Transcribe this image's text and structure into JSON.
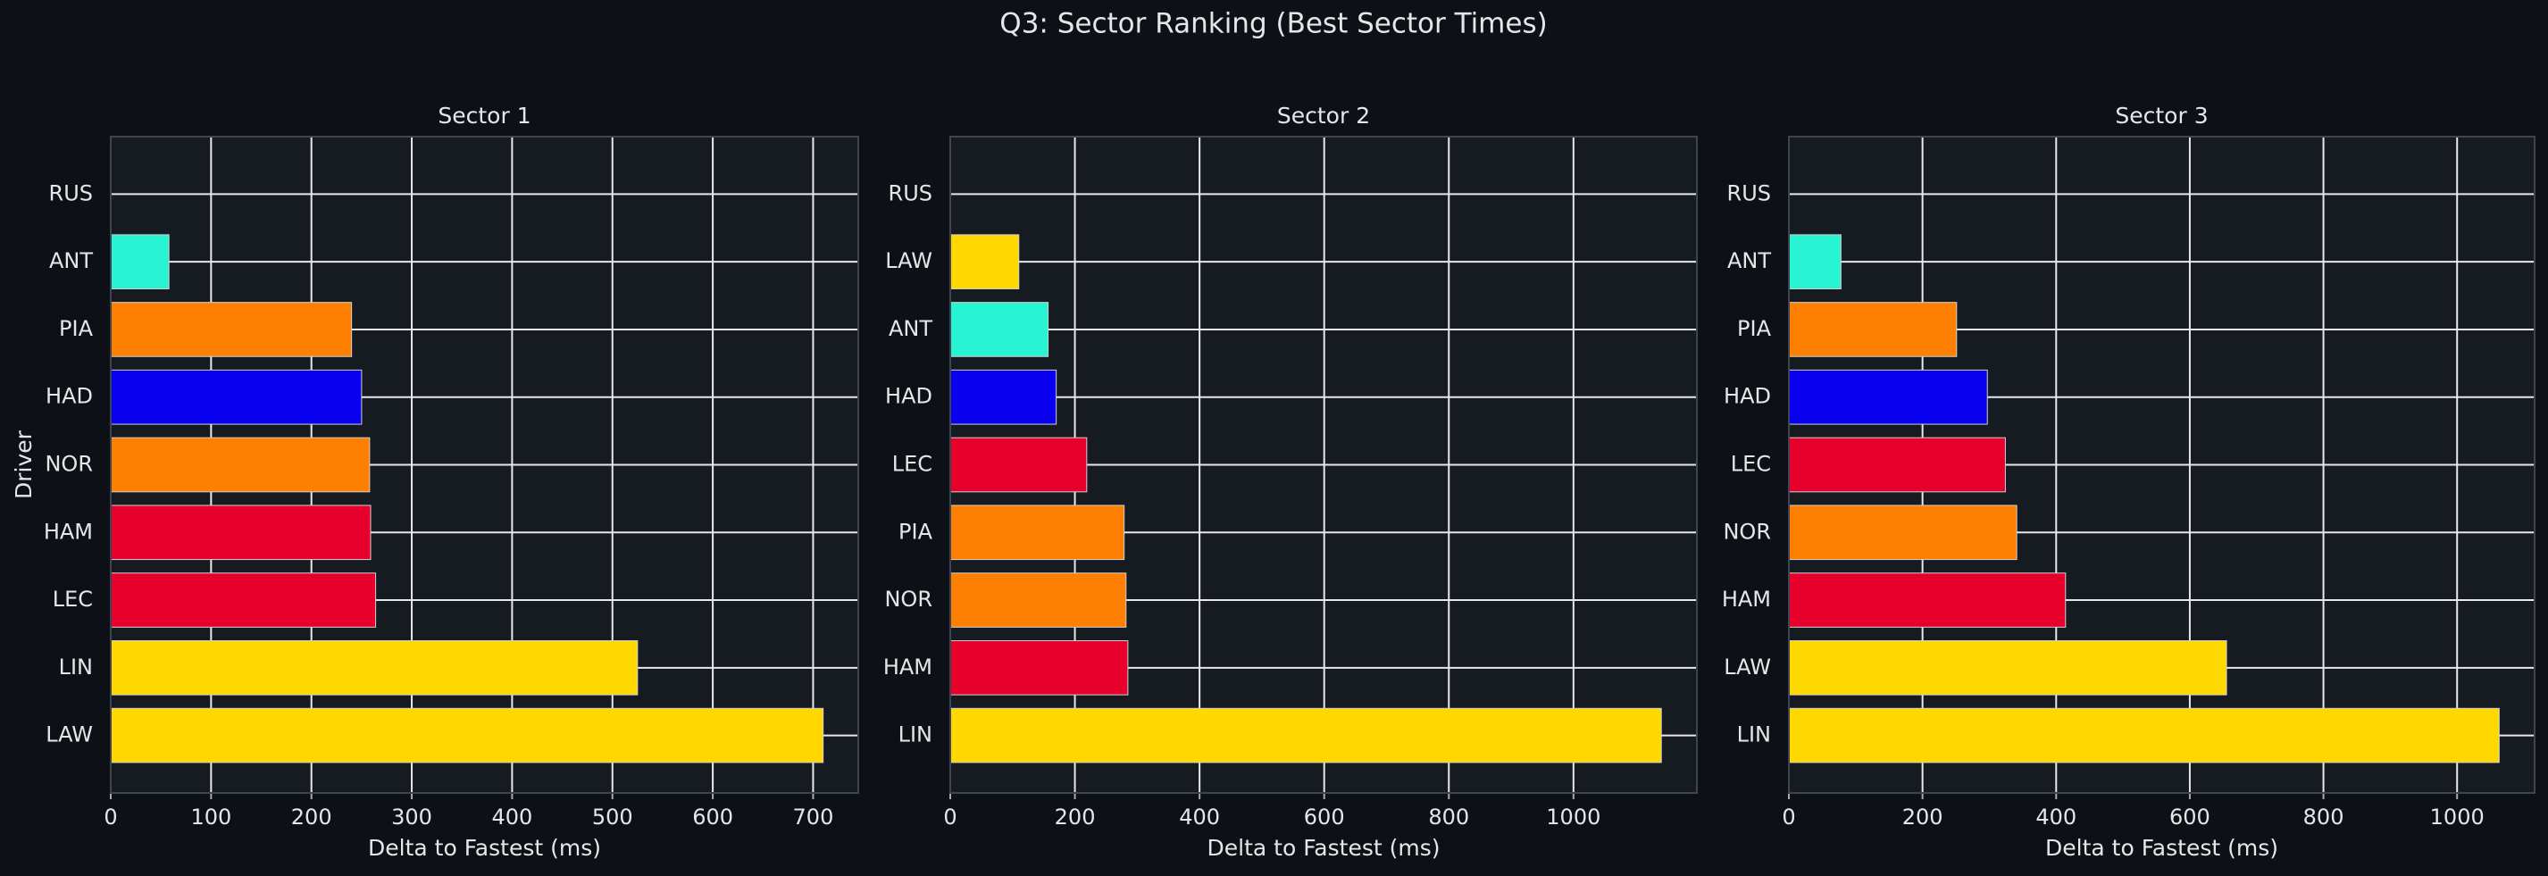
{
  "title": "Q3: Sector Ranking (Best Sector Times)",
  "chart_data": [
    {
      "type": "bar",
      "orientation": "horizontal",
      "title": "Sector 1",
      "xlabel": "Delta to Fastest (ms)",
      "ylabel": "Driver",
      "categories": [
        "RUS",
        "ANT",
        "PIA",
        "HAD",
        "NOR",
        "HAM",
        "LEC",
        "LIN",
        "LAW"
      ],
      "values": [
        0,
        58,
        240,
        250,
        258,
        259,
        264,
        525,
        710
      ],
      "colors": [
        "#27f4d2",
        "#27f4d2",
        "#ff8000",
        "#0a00f0",
        "#ff8000",
        "#e8002d",
        "#e8002d",
        "#ffd800",
        "#ffd800"
      ],
      "xlim": [
        0,
        745
      ],
      "xticks": [
        0,
        100,
        200,
        300,
        400,
        500,
        600,
        700
      ],
      "grid": true
    },
    {
      "type": "bar",
      "orientation": "horizontal",
      "title": "Sector 2",
      "xlabel": "Delta to Fastest (ms)",
      "categories": [
        "RUS",
        "LAW",
        "ANT",
        "HAD",
        "LEC",
        "PIA",
        "NOR",
        "HAM",
        "LIN"
      ],
      "values": [
        0,
        110,
        157,
        170,
        219,
        279,
        282,
        285,
        1141
      ],
      "colors": [
        "#27f4d2",
        "#ffd800",
        "#27f4d2",
        "#0a00f0",
        "#e8002d",
        "#ff8000",
        "#ff8000",
        "#e8002d",
        "#ffd800"
      ],
      "xlim": [
        0,
        1198
      ],
      "xticks": [
        0,
        200,
        400,
        600,
        800,
        1000
      ],
      "grid": true
    },
    {
      "type": "bar",
      "orientation": "horizontal",
      "title": "Sector 3",
      "xlabel": "Delta to Fastest (ms)",
      "categories": [
        "RUS",
        "ANT",
        "PIA",
        "HAD",
        "LEC",
        "NOR",
        "HAM",
        "LAW",
        "LIN"
      ],
      "values": [
        0,
        78,
        251,
        297,
        324,
        341,
        414,
        655,
        1063
      ],
      "colors": [
        "#27f4d2",
        "#27f4d2",
        "#ff8000",
        "#0a00f0",
        "#e8002d",
        "#ff8000",
        "#e8002d",
        "#ffd800",
        "#ffd800"
      ],
      "xlim": [
        0,
        1116
      ],
      "xticks": [
        0,
        200,
        400,
        600,
        800,
        1000
      ],
      "grid": true
    }
  ]
}
